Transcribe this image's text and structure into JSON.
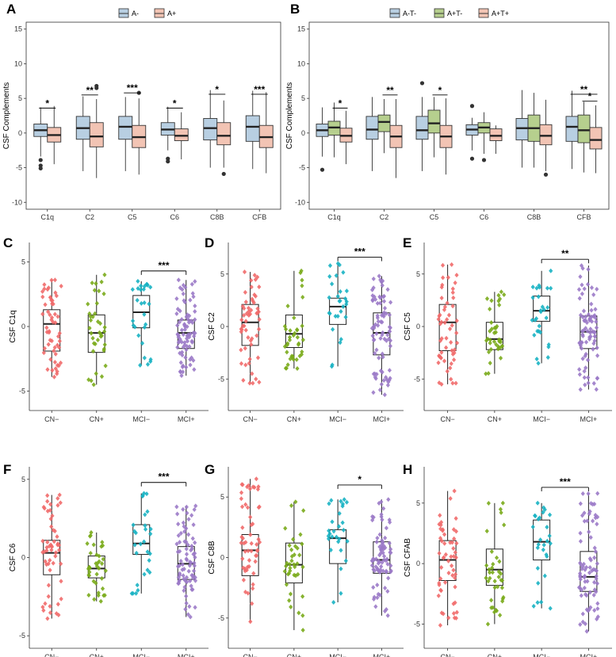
{
  "colors": {
    "neg": "#b8cfe2",
    "pos": "#f2c4b4",
    "mid": "#b6cf8e",
    "cn_neg": "#f16a6a",
    "cn_pos": "#7aab1b",
    "mci_neg": "#18b3c3",
    "mci_pos": "#9b7ac8"
  },
  "chart_data": [
    {
      "panel": "A",
      "type": "box",
      "ylabel": "CSF Complements",
      "categories": [
        "C1q",
        "C2",
        "C5",
        "C6",
        "C8B",
        "CFB"
      ],
      "ylim": [
        -11,
        16
      ],
      "yticks": [
        -10,
        -5,
        0,
        5,
        10,
        15
      ],
      "legend": [
        "A-",
        "A+"
      ],
      "boxes": [
        [
          {
            "q1": -0.5,
            "med": 0.4,
            "q3": 1.3,
            "lo": -3.4,
            "hi": 3.7,
            "out": [
              -3.9,
              -4.7,
              -5.1
            ]
          },
          {
            "q1": -1.3,
            "med": -0.3,
            "q3": 0.8,
            "lo": -4.5,
            "hi": 3.9,
            "out": []
          }
        ],
        [
          {
            "q1": -0.9,
            "med": 0.7,
            "q3": 2.4,
            "lo": -5.5,
            "hi": 5.3,
            "out": []
          },
          {
            "q1": -2.0,
            "med": -0.5,
            "q3": 1.5,
            "lo": -6.5,
            "hi": 4.9,
            "out": [
              6.5,
              6.8
            ]
          }
        ],
        [
          {
            "q1": -0.9,
            "med": 0.9,
            "q3": 2.4,
            "lo": -5.5,
            "hi": 5.2,
            "out": []
          },
          {
            "q1": -2.1,
            "med": -0.6,
            "q3": 1.1,
            "lo": -6.0,
            "hi": 5.0,
            "out": [
              5.8
            ]
          }
        ],
        [
          {
            "q1": -0.3,
            "med": 0.5,
            "q3": 1.5,
            "lo": -2.5,
            "hi": 3.8,
            "out": [
              -3.7,
              -4.1
            ]
          },
          {
            "q1": -1.1,
            "med": -0.4,
            "q3": 0.6,
            "lo": -3.8,
            "hi": 3.0,
            "out": []
          }
        ],
        [
          {
            "q1": -1.0,
            "med": 0.7,
            "q3": 2.1,
            "lo": -5.0,
            "hi": 6.2,
            "out": []
          },
          {
            "q1": -1.7,
            "med": -0.4,
            "q3": 1.5,
            "lo": -5.0,
            "hi": 4.7,
            "out": [
              -5.9
            ]
          }
        ],
        [
          {
            "q1": -1.2,
            "med": 0.9,
            "q3": 2.5,
            "lo": -5.2,
            "hi": 6.1,
            "out": []
          },
          {
            "q1": -2.1,
            "med": -0.6,
            "q3": 1.1,
            "lo": -5.8,
            "hi": 5.9,
            "out": []
          }
        ]
      ],
      "sig": [
        {
          "from": 0,
          "to": 1,
          "cat": 0,
          "label": "*",
          "y": 3.6
        },
        {
          "from": 0,
          "to": 1,
          "cat": 1,
          "label": "**",
          "y": 5.5
        },
        {
          "from": 0,
          "to": 1,
          "cat": 2,
          "label": "***",
          "y": 5.8
        },
        {
          "from": 0,
          "to": 1,
          "cat": 3,
          "label": "*",
          "y": 3.6
        },
        {
          "from": 0,
          "to": 1,
          "cat": 4,
          "label": "*",
          "y": 5.6
        },
        {
          "from": 0,
          "to": 1,
          "cat": 5,
          "label": "***",
          "y": 5.6
        }
      ]
    },
    {
      "panel": "B",
      "type": "box",
      "ylabel": "CSF Complements",
      "categories": [
        "C1q",
        "C2",
        "C5",
        "C6",
        "C8B",
        "CFB"
      ],
      "ylim": [
        -11,
        16
      ],
      "yticks": [
        -10,
        -5,
        0,
        5,
        10,
        15
      ],
      "legend": [
        "A-T-",
        "A+T-",
        "A+T+"
      ],
      "boxes": [
        [
          {
            "q1": -0.5,
            "med": 0.4,
            "q3": 1.3,
            "lo": -3.4,
            "hi": 3.7,
            "out": [
              -5.3
            ]
          },
          {
            "q1": -0.3,
            "med": 0.8,
            "q3": 1.7,
            "lo": -3.5,
            "hi": 4.4,
            "out": []
          },
          {
            "q1": -1.3,
            "med": -0.4,
            "q3": 0.7,
            "lo": -4.5,
            "hi": 3.2,
            "out": []
          }
        ],
        [
          {
            "q1": -0.9,
            "med": 0.5,
            "q3": 2.4,
            "lo": -5.5,
            "hi": 5.2,
            "out": []
          },
          {
            "q1": 0.2,
            "med": 1.6,
            "q3": 2.6,
            "lo": -2.9,
            "hi": 4.9,
            "out": []
          },
          {
            "q1": -2.1,
            "med": -0.5,
            "q3": 1.1,
            "lo": -6.5,
            "hi": 4.9,
            "out": []
          }
        ],
        [
          {
            "q1": -0.9,
            "med": 0.4,
            "q3": 2.4,
            "lo": -5.5,
            "hi": 5.2,
            "out": [
              7.2
            ]
          },
          {
            "q1": 0.0,
            "med": 1.4,
            "q3": 3.3,
            "lo": -3.5,
            "hi": 5.2,
            "out": []
          },
          {
            "q1": -2.1,
            "med": -0.5,
            "q3": 1.1,
            "lo": -6.0,
            "hi": 5.0,
            "out": []
          }
        ],
        [
          {
            "q1": -0.3,
            "med": 0.5,
            "q3": 1.2,
            "lo": -2.5,
            "hi": 2.2,
            "out": [
              3.9,
              -3.7
            ]
          },
          {
            "q1": 0.0,
            "med": 0.8,
            "q3": 1.5,
            "lo": -3.0,
            "hi": 3.0,
            "out": [
              -3.9
            ]
          },
          {
            "q1": -1.1,
            "med": -0.4,
            "q3": 0.6,
            "lo": -3.0,
            "hi": 1.1,
            "out": []
          }
        ],
        [
          {
            "q1": -1.0,
            "med": 0.7,
            "q3": 2.1,
            "lo": -5.0,
            "hi": 6.2,
            "out": []
          },
          {
            "q1": -1.2,
            "med": 0.7,
            "q3": 2.6,
            "lo": -5.0,
            "hi": 5.8,
            "out": []
          },
          {
            "q1": -1.7,
            "med": -0.4,
            "q3": 1.2,
            "lo": -5.5,
            "hi": 4.8,
            "out": [
              -6.0
            ]
          }
        ],
        [
          {
            "q1": -1.2,
            "med": 0.9,
            "q3": 2.4,
            "lo": -5.2,
            "hi": 6.1,
            "out": []
          },
          {
            "q1": -1.4,
            "med": 0.4,
            "q3": 2.6,
            "lo": -5.7,
            "hi": 4.5,
            "out": []
          },
          {
            "q1": -2.3,
            "med": -1.0,
            "q3": 0.8,
            "lo": -5.8,
            "hi": 4.0,
            "out": []
          }
        ]
      ],
      "sig": [
        {
          "from": 1,
          "to": 2,
          "cat": 0,
          "label": "*",
          "y": 3.6
        },
        {
          "from": 1,
          "to": 2,
          "cat": 1,
          "label": "**",
          "y": 5.5
        },
        {
          "from": 1,
          "to": 2,
          "cat": 2,
          "label": "*",
          "y": 5.5
        },
        {
          "from": 0,
          "to": 2,
          "cat": 5,
          "label": "**",
          "y": 5.6
        },
        {
          "from": 1,
          "to": 2,
          "cat": 5,
          "label": "*",
          "y": 4.6
        }
      ]
    },
    {
      "panel": "C",
      "type": "box_strip",
      "ylabel": "CSF C1q",
      "categories": [
        "CN−",
        "CN+",
        "MCI−",
        "MCI+"
      ],
      "ylim": [
        -6.5,
        6.5
      ],
      "yticks": [
        -5,
        0,
        5
      ],
      "boxes": [
        {
          "q1": -1.9,
          "med": 0.2,
          "q3": 1.3,
          "lo": -3.9,
          "hi": 3.6
        },
        {
          "q1": -2.0,
          "med": -0.5,
          "q3": 0.9,
          "lo": -4.5,
          "hi": 4.0
        },
        {
          "q1": -0.1,
          "med": 1.1,
          "q3": 2.4,
          "lo": -3.0,
          "hi": 3.5
        },
        {
          "q1": -1.7,
          "med": -0.5,
          "q3": 0.5,
          "lo": -3.8,
          "hi": 3.6
        }
      ],
      "n": [
        55,
        38,
        28,
        80
      ],
      "sig": {
        "from": 2,
        "to": 3,
        "label": "***",
        "y": 4.3
      }
    },
    {
      "panel": "D",
      "type": "box_strip",
      "ylabel": "CSF C2",
      "categories": [
        "CN−",
        "CN+",
        "MCI−",
        "MCI+"
      ],
      "ylim": [
        -8,
        8
      ],
      "yticks": [
        -5,
        0,
        5
      ],
      "boxes": [
        {
          "q1": -1.8,
          "med": 0.4,
          "q3": 2.1,
          "lo": -5.4,
          "hi": 5.2
        },
        {
          "q1": -2.0,
          "med": -0.7,
          "q3": 1.1,
          "lo": -4.0,
          "hi": 5.3
        },
        {
          "q1": 0.2,
          "med": 1.9,
          "q3": 2.7,
          "lo": -3.8,
          "hi": 6.0
        },
        {
          "q1": -2.7,
          "med": -0.6,
          "q3": 1.3,
          "lo": -6.5,
          "hi": 4.8
        }
      ],
      "n": [
        55,
        38,
        28,
        80
      ],
      "sig": {
        "from": 2,
        "to": 3,
        "label": "***",
        "y": 6.6
      }
    },
    {
      "panel": "E",
      "type": "box_strip",
      "ylabel": "CSF C5",
      "categories": [
        "CN−",
        "CN+",
        "MCI−",
        "MCI+"
      ],
      "ylim": [
        -8,
        8
      ],
      "yticks": [
        -5,
        0,
        5
      ],
      "boxes": [
        {
          "q1": -2.3,
          "med": 0.4,
          "q3": 2.1,
          "lo": -5.5,
          "hi": 5.9
        },
        {
          "q1": -2.2,
          "med": -1.2,
          "q3": 0.4,
          "lo": -4.5,
          "hi": 3.3
        },
        {
          "q1": 0.5,
          "med": 1.5,
          "q3": 2.9,
          "lo": -3.5,
          "hi": 5.3
        },
        {
          "q1": -2.1,
          "med": -0.5,
          "q3": 1.0,
          "lo": -6.0,
          "hi": 5.8
        }
      ],
      "n": [
        55,
        38,
        28,
        80
      ],
      "sig": {
        "from": 2,
        "to": 3,
        "label": "**",
        "y": 6.4
      }
    },
    {
      "panel": "F",
      "type": "box_strip",
      "ylabel": "CSF C6",
      "categories": [
        "CN−",
        "CN+",
        "MCI−",
        "MCI+"
      ],
      "ylim": [
        -5.8,
        5.8
      ],
      "yticks": [
        -5,
        0,
        5
      ],
      "boxes": [
        {
          "q1": -1.1,
          "med": 0.3,
          "q3": 1.1,
          "lo": -3.9,
          "hi": 4.0
        },
        {
          "q1": -1.3,
          "med": -0.7,
          "q3": 0.1,
          "lo": -2.8,
          "hi": 1.6
        },
        {
          "q1": 0.2,
          "med": 0.9,
          "q3": 2.1,
          "lo": -2.3,
          "hi": 4.1
        },
        {
          "q1": -1.4,
          "med": -0.4,
          "q3": 0.7,
          "lo": -3.8,
          "hi": 3.3
        }
      ],
      "n": [
        55,
        38,
        28,
        80
      ],
      "sig": {
        "from": 2,
        "to": 3,
        "label": "***",
        "y": 4.8
      }
    },
    {
      "panel": "G",
      "type": "box_strip",
      "ylabel": "CSF C8B",
      "categories": [
        "CN−",
        "CN+",
        "MCI−",
        "MCI+"
      ],
      "ylim": [
        -7.5,
        7.5
      ],
      "yticks": [
        -5,
        0,
        5
      ],
      "boxes": [
        {
          "q1": -1.5,
          "med": 0.6,
          "q3": 1.9,
          "lo": -5.3,
          "hi": 6.5
        },
        {
          "q1": -2.1,
          "med": -0.6,
          "q3": 1.2,
          "lo": -6.0,
          "hi": 4.6
        },
        {
          "q1": -0.5,
          "med": 1.6,
          "q3": 2.3,
          "lo": -3.7,
          "hi": 4.8
        },
        {
          "q1": -1.3,
          "med": -0.2,
          "q3": 1.3,
          "lo": -4.8,
          "hi": 4.8
        }
      ],
      "n": [
        55,
        38,
        28,
        80
      ],
      "sig": {
        "from": 2,
        "to": 3,
        "label": "*",
        "y": 6.0
      }
    },
    {
      "panel": "H",
      "type": "box_strip",
      "ylabel": "CSF CFAB",
      "categories": [
        "CN−",
        "CN+",
        "MCI−",
        "MCI+"
      ],
      "ylim": [
        -7,
        8
      ],
      "yticks": [
        -5,
        0,
        5
      ],
      "boxes": [
        {
          "q1": -1.4,
          "med": 0.3,
          "q3": 1.9,
          "lo": -5.1,
          "hi": 6.0
        },
        {
          "q1": -1.8,
          "med": -0.5,
          "q3": 1.2,
          "lo": -5.0,
          "hi": 5.0
        },
        {
          "q1": 0.3,
          "med": 1.8,
          "q3": 3.6,
          "lo": -3.7,
          "hi": 5.0
        },
        {
          "q1": -2.3,
          "med": -1.1,
          "q3": 1.0,
          "lo": -5.6,
          "hi": 5.8
        }
      ],
      "n": [
        55,
        38,
        28,
        80
      ],
      "sig": {
        "from": 2,
        "to": 3,
        "label": "***",
        "y": 6.3
      }
    }
  ]
}
